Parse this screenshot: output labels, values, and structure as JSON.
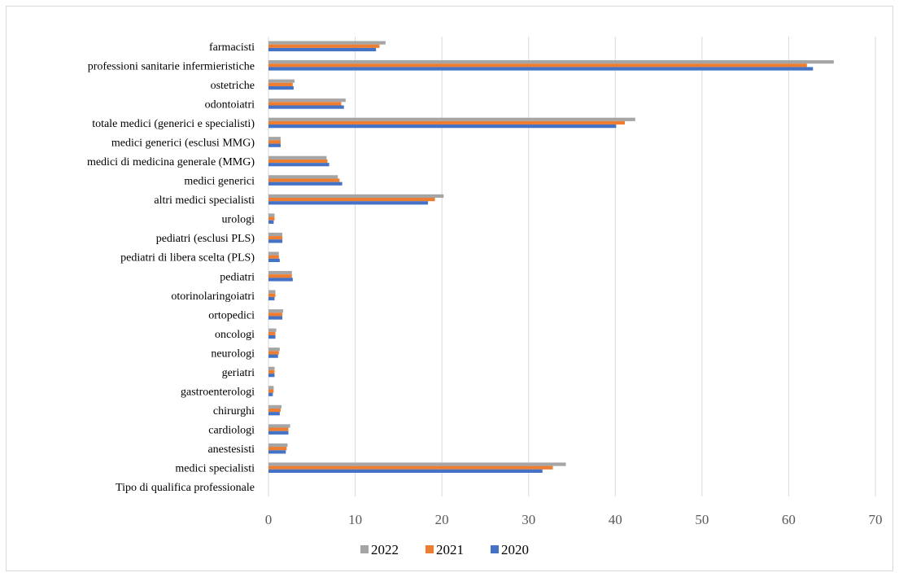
{
  "chart_data": {
    "type": "bar",
    "orientation": "horizontal",
    "title": "",
    "xlabel": "",
    "ylabel": "",
    "xlim": [
      0,
      70
    ],
    "xticks": [
      0,
      10,
      20,
      30,
      40,
      50,
      60,
      70
    ],
    "grid": true,
    "legend_position": "bottom",
    "categories": [
      "farmacisti",
      "professioni sanitarie infermieristiche",
      "ostetriche",
      "odontoiatri",
      "totale medici (generici e specialisti)",
      "medici generici (esclusi MMG)",
      "medici di medicina generale (MMG)",
      "medici generici",
      "altri medici specialisti",
      "urologi",
      "pediatri (esclusi PLS)",
      "pediatri di libera scelta (PLS)",
      "pediatri",
      "otorinolaringoiatri",
      "ortopedici",
      "oncologi",
      "neurologi",
      "geriatri",
      "gastroenterologi",
      "chirurghi",
      "cardiologi",
      "anestesisti",
      "medici specialisti",
      "Tipo di qualifica professionale"
    ],
    "series": [
      {
        "name": "2022",
        "color": "#a5a5a5",
        "values": [
          13.5,
          65.2,
          3.0,
          8.9,
          42.3,
          1.4,
          6.7,
          8.0,
          20.2,
          0.7,
          1.6,
          1.2,
          2.7,
          0.8,
          1.7,
          0.9,
          1.3,
          0.7,
          0.6,
          1.5,
          2.5,
          2.2,
          34.3,
          null
        ]
      },
      {
        "name": "2021",
        "color": "#ed7d31",
        "values": [
          12.8,
          62.1,
          2.8,
          8.4,
          41.1,
          1.4,
          6.8,
          8.2,
          19.2,
          0.7,
          1.6,
          1.2,
          2.7,
          0.8,
          1.6,
          0.8,
          1.2,
          0.7,
          0.6,
          1.4,
          2.3,
          2.1,
          32.8,
          null
        ]
      },
      {
        "name": "2020",
        "color": "#4472c4",
        "values": [
          12.4,
          62.8,
          2.9,
          8.7,
          40.1,
          1.4,
          7.0,
          8.5,
          18.4,
          0.6,
          1.6,
          1.3,
          2.8,
          0.7,
          1.6,
          0.8,
          1.1,
          0.7,
          0.5,
          1.3,
          2.3,
          2.0,
          31.6,
          null
        ]
      }
    ],
    "legend_order": [
      "2022",
      "2021",
      "2020"
    ]
  }
}
